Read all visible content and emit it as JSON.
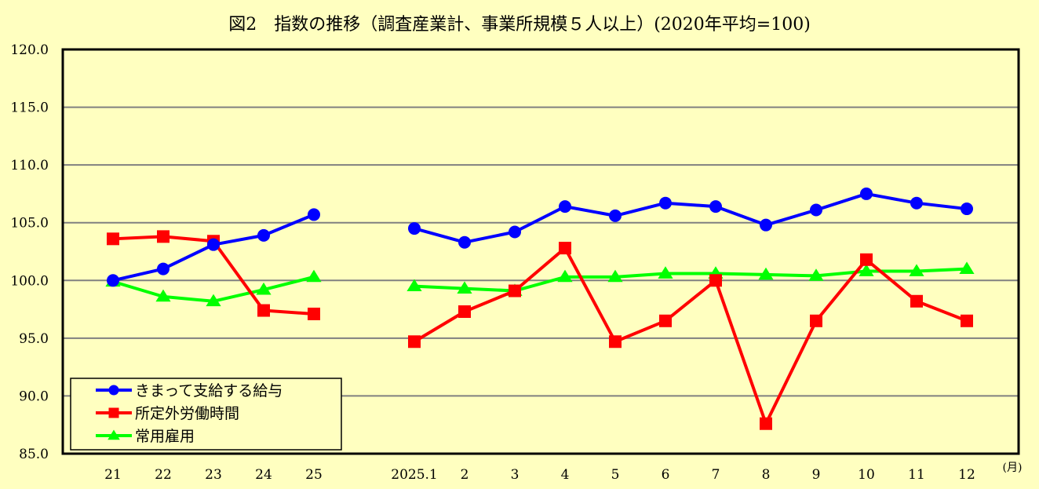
{
  "chart_data": {
    "type": "line",
    "title": "図2　指数の推移（調査産業計、事業所規模５人以上）(2020年平均=100)",
    "xlabel": "",
    "x_unit_label": "(月)",
    "ylabel": "",
    "ylim": [
      85.0,
      120.0
    ],
    "yticks": [
      "120.0",
      "115.0",
      "110.0",
      "105.0",
      "100.0",
      "95.0",
      "90.0",
      "85.0"
    ],
    "ytick_values": [
      120,
      115,
      110,
      105,
      100,
      95,
      90,
      85
    ],
    "grid": true,
    "legend_position": "lower-left inside plot",
    "categories": [
      "21",
      "22",
      "23",
      "24",
      "25",
      "2025.1",
      "2",
      "3",
      "4",
      "5",
      "6",
      "7",
      "8",
      "9",
      "10",
      "11",
      "12"
    ],
    "groups": [
      {
        "name": "annual",
        "categories": [
          "21",
          "22",
          "23",
          "24",
          "25"
        ]
      },
      {
        "name": "monthly_2025",
        "categories": [
          "2025.1",
          "2",
          "3",
          "4",
          "5",
          "6",
          "7",
          "8",
          "9",
          "10",
          "11",
          "12"
        ]
      }
    ],
    "series": [
      {
        "name": "きまって支給する給与",
        "color": "#0000ff",
        "marker": "circle",
        "values": [
          100.0,
          101.0,
          103.1,
          103.9,
          105.7,
          104.5,
          103.3,
          104.2,
          106.4,
          105.6,
          106.7,
          106.4,
          104.8,
          106.1,
          107.5,
          106.7,
          106.2
        ]
      },
      {
        "name": "所定外労働時間",
        "color": "#ff0000",
        "marker": "square",
        "values": [
          103.6,
          103.8,
          103.4,
          97.4,
          97.1,
          94.7,
          97.3,
          99.1,
          102.8,
          94.7,
          96.5,
          100.0,
          87.6,
          96.5,
          101.8,
          98.2,
          96.5
        ]
      },
      {
        "name": "常用雇用",
        "color": "#00ff00",
        "marker": "triangle",
        "values": [
          99.9,
          98.6,
          98.2,
          99.2,
          100.3,
          99.5,
          99.3,
          99.1,
          100.3,
          100.3,
          100.6,
          100.6,
          100.5,
          100.4,
          100.8,
          100.8,
          101.0
        ]
      }
    ]
  },
  "colors": {
    "background": "#ffffc0",
    "gridline": "#808080",
    "frame": "#000000"
  }
}
